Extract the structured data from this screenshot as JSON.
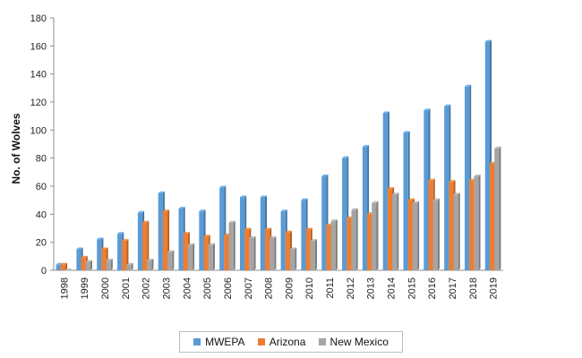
{
  "chart_data": {
    "type": "bar",
    "title": "",
    "xlabel": "",
    "ylabel": "No. of Wolves",
    "ylim": [
      0,
      180
    ],
    "yticks": [
      0,
      20,
      40,
      60,
      80,
      100,
      120,
      140,
      160,
      180
    ],
    "grid": false,
    "legend_position": "bottom",
    "categories": [
      "1998",
      "1999",
      "2000",
      "2001",
      "2002",
      "2003",
      "2004",
      "2005",
      "2006",
      "2007",
      "2008",
      "2009",
      "2010",
      "2011",
      "2012",
      "2013",
      "2014",
      "2015",
      "2016",
      "2017",
      "2018",
      "2019"
    ],
    "series": [
      {
        "name": "MWEPA",
        "color": "#5b9bd5",
        "values": [
          4,
          15,
          22,
          26,
          41,
          55,
          44,
          42,
          59,
          52,
          52,
          42,
          50,
          67,
          80,
          88,
          112,
          98,
          114,
          117,
          131,
          163
        ]
      },
      {
        "name": "Arizona",
        "color": "#ed7d31",
        "values": [
          4,
          9,
          15,
          21,
          34,
          42,
          26,
          24,
          25,
          29,
          29,
          27,
          29,
          32,
          37,
          40,
          58,
          50,
          64,
          63,
          64,
          76
        ]
      },
      {
        "name": "New Mexico",
        "color": "#a5a5a5",
        "values": [
          0,
          6,
          7,
          4,
          7,
          13,
          18,
          18,
          34,
          23,
          23,
          15,
          21,
          35,
          43,
          48,
          54,
          48,
          50,
          54,
          67,
          87
        ]
      }
    ]
  }
}
